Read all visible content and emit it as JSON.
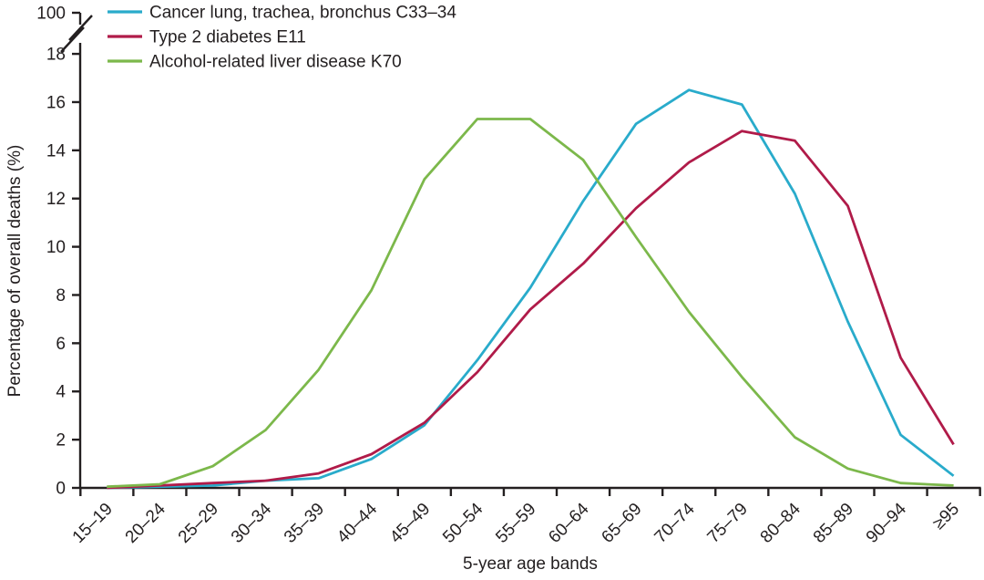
{
  "colors": {
    "axis": "#231F20",
    "text": "#231F20",
    "background": "#FFFFFF",
    "cancer_line": "#29ABCB",
    "diabetes_line": "#B01B49",
    "alcohol_line": "#7CB84B"
  },
  "chart_data": {
    "type": "line",
    "title": "",
    "xlabel": "5-year age bands",
    "ylabel": "Percentage of overall deaths (%)",
    "grid": false,
    "legend_position": "top-left",
    "ylim": [
      0,
      18
    ],
    "y_axis_break_top_label": "100",
    "y_ticks": [
      0,
      2,
      4,
      6,
      8,
      10,
      12,
      14,
      16,
      18
    ],
    "categories": [
      "15–19",
      "20–24",
      "25–29",
      "30–34",
      "35–39",
      "40–44",
      "45–49",
      "50–54",
      "55–59",
      "60–64",
      "65–69",
      "70–74",
      "75–79",
      "80–84",
      "85–89",
      "90–94",
      "≥95"
    ],
    "series": [
      {
        "name": "Cancer lung, trachea, bronchus C33–34",
        "color": "#29ABCB",
        "values": [
          0.0,
          0.05,
          0.1,
          0.3,
          0.4,
          1.2,
          2.6,
          5.3,
          8.3,
          11.9,
          15.1,
          16.5,
          15.9,
          12.2,
          6.9,
          2.2,
          0.5
        ]
      },
      {
        "name": "Type 2 diabetes E11",
        "color": "#B01B49",
        "values": [
          0.0,
          0.1,
          0.2,
          0.3,
          0.6,
          1.4,
          2.7,
          4.8,
          7.4,
          9.3,
          11.6,
          13.5,
          14.8,
          14.4,
          11.7,
          5.4,
          1.8
        ]
      },
      {
        "name": "Alcohol-related liver disease K70",
        "color": "#7CB84B",
        "values": [
          0.05,
          0.15,
          0.9,
          2.4,
          4.9,
          8.2,
          12.8,
          15.3,
          15.3,
          13.6,
          10.4,
          7.3,
          4.6,
          2.1,
          0.8,
          0.2,
          0.1
        ]
      }
    ]
  }
}
